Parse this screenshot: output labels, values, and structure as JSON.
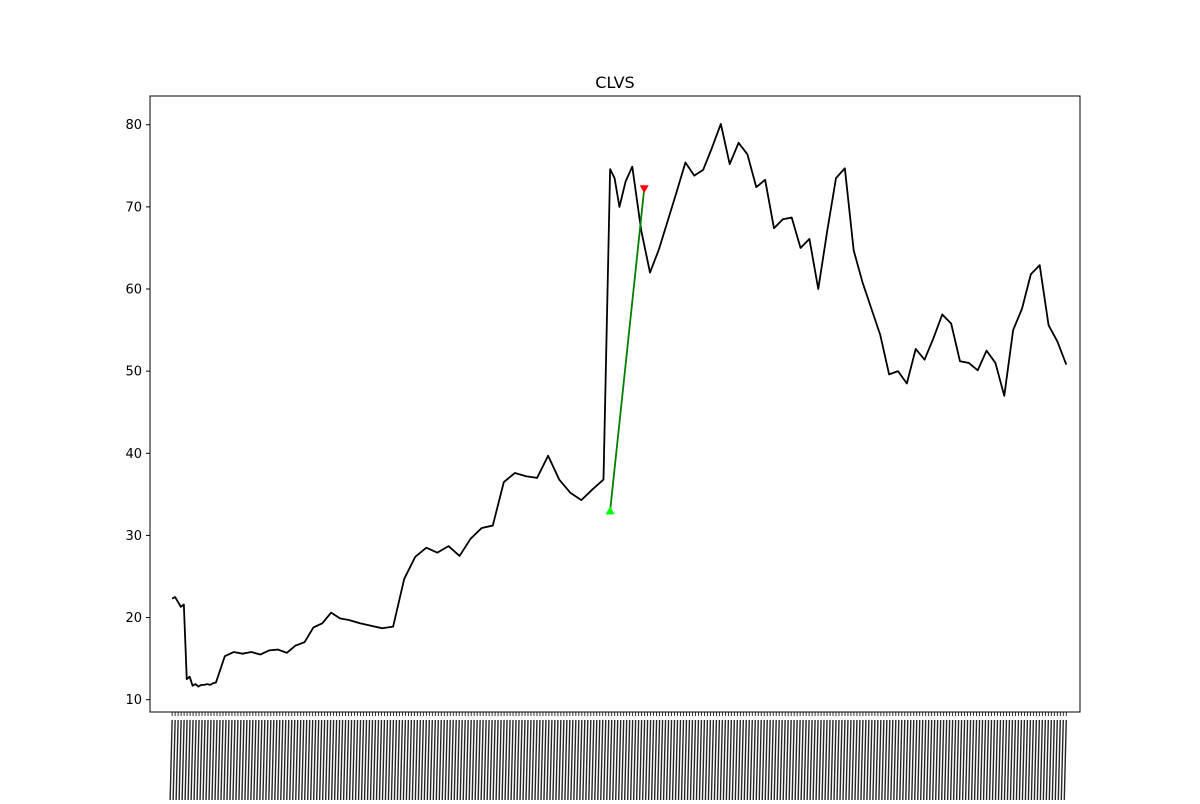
{
  "chart_data": {
    "type": "line",
    "title": "CLVS",
    "xlabel": "",
    "ylabel": "",
    "ylim": [
      8.5,
      83.5
    ],
    "xlim": [
      -0.5,
      20.5
    ],
    "yticks": [
      10,
      20,
      30,
      40,
      50,
      60,
      70,
      80
    ],
    "grid": false,
    "legend": "none",
    "series": [
      {
        "color": "#000000",
        "x": [
          0,
          0.066,
          0.132,
          0.198,
          0.264,
          0.33,
          0.396,
          0.462,
          0.528,
          0.594,
          0.66,
          0.726,
          0.792,
          0.858,
          0.924,
          0.99,
          1.19,
          1.39,
          1.59,
          1.79,
          1.99,
          2.19,
          2.39,
          2.59,
          2.79,
          2.99,
          3.19,
          3.39,
          3.59,
          3.79,
          3.99,
          4.24,
          4.49,
          4.74,
          4.99,
          5.24,
          5.49,
          5.74,
          5.99,
          6.24,
          6.49,
          6.74,
          6.99,
          7.24,
          7.49,
          7.74,
          7.99,
          8.24,
          8.49,
          8.74,
          8.99,
          9.24,
          9.49,
          9.74,
          9.89,
          9.99,
          10.1,
          10.24,
          10.39,
          10.59,
          10.79,
          10.99,
          11.19,
          11.39,
          11.59,
          11.79,
          11.99,
          12.19,
          12.39,
          12.59,
          12.79,
          12.99,
          13.19,
          13.39,
          13.59,
          13.79,
          13.99,
          14.19,
          14.39,
          14.59,
          14.79,
          14.99,
          15.19,
          15.39,
          15.59,
          15.79,
          15.99,
          16.19,
          16.39,
          16.59,
          16.79,
          16.99,
          17.19,
          17.39,
          17.59,
          17.79,
          17.99,
          18.19,
          18.39,
          18.59,
          18.79,
          18.99,
          19.19,
          19.39,
          19.59,
          19.79,
          19.99,
          20.19
        ],
        "y": [
          22.3,
          22.5,
          21.9,
          21.3,
          21.6,
          12.5,
          12.8,
          11.7,
          11.9,
          11.6,
          11.8,
          11.8,
          11.9,
          11.8,
          12.0,
          12.1,
          15.3,
          15.8,
          15.6,
          15.8,
          15.5,
          16.0,
          16.1,
          15.7,
          16.6,
          17.0,
          18.8,
          19.3,
          20.6,
          19.9,
          19.7,
          19.3,
          19.0,
          18.7,
          18.9,
          24.7,
          27.4,
          28.5,
          27.9,
          28.7,
          27.5,
          29.6,
          30.9,
          31.2,
          36.5,
          37.6,
          37.2,
          37.0,
          39.7,
          36.8,
          35.2,
          34.3,
          35.6,
          36.8,
          74.6,
          73.5,
          70.0,
          73.1,
          74.9,
          67.2,
          62.0,
          64.8,
          68.3,
          71.8,
          75.4,
          73.8,
          74.5,
          77.2,
          80.1,
          75.2,
          77.8,
          76.4,
          72.4,
          73.3,
          67.4,
          68.5,
          68.7,
          65.0,
          66.1,
          60.0,
          67.0,
          73.5,
          74.7,
          64.7,
          60.8,
          57.6,
          54.4,
          49.6,
          50.0,
          48.5,
          52.7,
          51.4,
          54.0,
          56.9,
          55.8,
          51.2,
          51.0,
          50.1,
          52.5,
          51.0,
          47.0,
          55.0,
          57.6,
          61.8,
          62.9,
          55.6,
          53.6,
          50.8
        ]
      },
      {
        "color": "#008000",
        "x": [
          9.89,
          10.66
        ],
        "y": [
          33.0,
          72.2
        ]
      }
    ],
    "markers": [
      {
        "shape": "triangle-up",
        "color": "#00ff00",
        "x": 9.89,
        "y": 33.0
      },
      {
        "shape": "triangle-down",
        "color": "#ff0000",
        "x": 10.66,
        "y": 72.2
      }
    ]
  }
}
